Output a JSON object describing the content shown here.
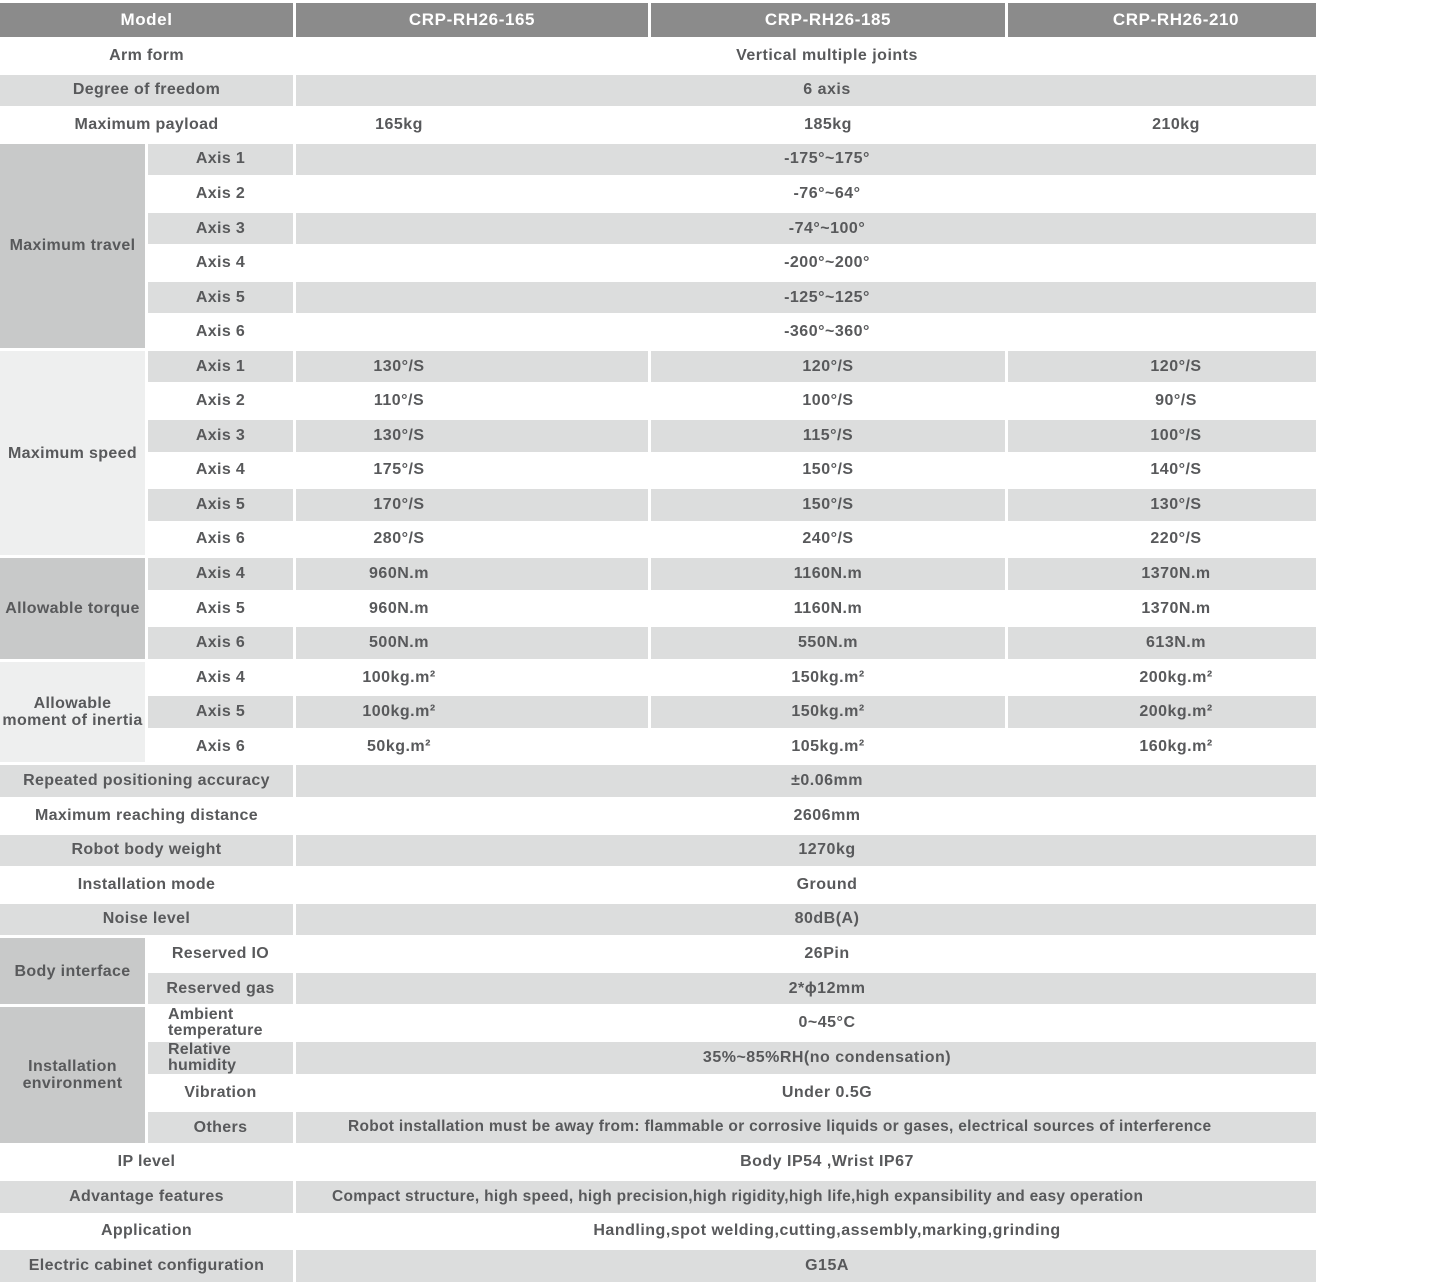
{
  "colors": {
    "header-bg": "#8b8b8b",
    "header-text": "#ffffff",
    "row-gray": "#dcdddd",
    "group-dark": "#c8c9c9",
    "group-light": "#eeefef",
    "text": "#58595b",
    "bg": "#ffffff"
  },
  "header": {
    "model_label": "Model",
    "models": [
      "CRP-RH26-165",
      "CRP-RH26-185",
      "CRP-RH26-210"
    ]
  },
  "general": {
    "arm_form": {
      "label": "Arm form",
      "value": "Vertical multiple joints"
    },
    "dof": {
      "label": "Degree of freedom",
      "value": "6 axis"
    },
    "payload": {
      "label": "Maximum payload",
      "values": [
        "165kg",
        "185kg",
        "210kg"
      ]
    }
  },
  "max_travel": {
    "group": "Maximum travel",
    "rows": [
      {
        "axis": "Axis 1",
        "value": "-175°~175°"
      },
      {
        "axis": "Axis 2",
        "value": "-76°~64°"
      },
      {
        "axis": "Axis 3",
        "value": "-74°~100°"
      },
      {
        "axis": "Axis 4",
        "value": "-200°~200°"
      },
      {
        "axis": "Axis 5",
        "value": "-125°~125°"
      },
      {
        "axis": "Axis 6",
        "value": "-360°~360°"
      }
    ]
  },
  "max_speed": {
    "group": "Maximum speed",
    "rows": [
      {
        "axis": "Axis 1",
        "values": [
          "130°/S",
          "120°/S",
          "120°/S"
        ]
      },
      {
        "axis": "Axis 2",
        "values": [
          "110°/S",
          "100°/S",
          "90°/S"
        ]
      },
      {
        "axis": "Axis 3",
        "values": [
          "130°/S",
          "115°/S",
          "100°/S"
        ]
      },
      {
        "axis": "Axis 4",
        "values": [
          "175°/S",
          "150°/S",
          "140°/S"
        ]
      },
      {
        "axis": "Axis 5",
        "values": [
          "170°/S",
          "150°/S",
          "130°/S"
        ]
      },
      {
        "axis": "Axis 6",
        "values": [
          "280°/S",
          "240°/S",
          "220°/S"
        ]
      }
    ]
  },
  "torque": {
    "group": "Allowable torque",
    "rows": [
      {
        "axis": "Axis 4",
        "values": [
          "960N.m",
          "1160N.m",
          "1370N.m"
        ]
      },
      {
        "axis": "Axis 5",
        "values": [
          "960N.m",
          "1160N.m",
          "1370N.m"
        ]
      },
      {
        "axis": "Axis 6",
        "values": [
          "500N.m",
          "550N.m",
          "613N.m"
        ]
      }
    ]
  },
  "inertia": {
    "group": "Allowable moment of inertia",
    "rows": [
      {
        "axis": "Axis 4",
        "values": [
          "100kg.m²",
          "150kg.m²",
          "200kg.m²"
        ]
      },
      {
        "axis": "Axis 5",
        "values": [
          "100kg.m²",
          "150kg.m²",
          "200kg.m²"
        ]
      },
      {
        "axis": "Axis 6",
        "values": [
          "50kg.m²",
          "105kg.m²",
          "160kg.m²"
        ]
      }
    ]
  },
  "single_rows": {
    "accuracy": {
      "label": "Repeated positioning accuracy",
      "value": "±0.06mm"
    },
    "reach": {
      "label": "Maximum reaching distance",
      "value": "2606mm"
    },
    "weight": {
      "label": "Robot body weight",
      "value": "1270kg"
    },
    "installation_mode": {
      "label": "Installation mode",
      "value": "Ground"
    },
    "noise": {
      "label": "Noise level",
      "value": "80dB(A)"
    },
    "ip": {
      "label": "IP level",
      "value": "Body IP54 ,Wrist IP67"
    },
    "advantage": {
      "label": "Advantage features",
      "value": "Compact structure, high speed, high precision,high rigidity,high life,high expansibility and easy operation"
    },
    "application": {
      "label": "Application",
      "value": "Handling,spot welding,cutting,assembly,marking,grinding"
    },
    "cabinet": {
      "label": "Electric cabinet configuration",
      "value": "G15A"
    }
  },
  "body_interface": {
    "group": "Body interface",
    "rows": [
      {
        "label": "Reserved IO",
        "value": "26Pin"
      },
      {
        "label": "Reserved gas",
        "value": "2*ϕ12mm"
      }
    ]
  },
  "environment": {
    "group": "Installation environment",
    "rows": [
      {
        "label": "Ambient temperature",
        "value": "0~45°C"
      },
      {
        "label": "Relative humidity",
        "value": "35%~85%RH(no condensation)"
      },
      {
        "label": "Vibration",
        "value": "Under 0.5G"
      },
      {
        "label": "Others",
        "value": "Robot installation must be away from: flammable or corrosive liquids or gases, electrical sources of interference"
      }
    ]
  }
}
